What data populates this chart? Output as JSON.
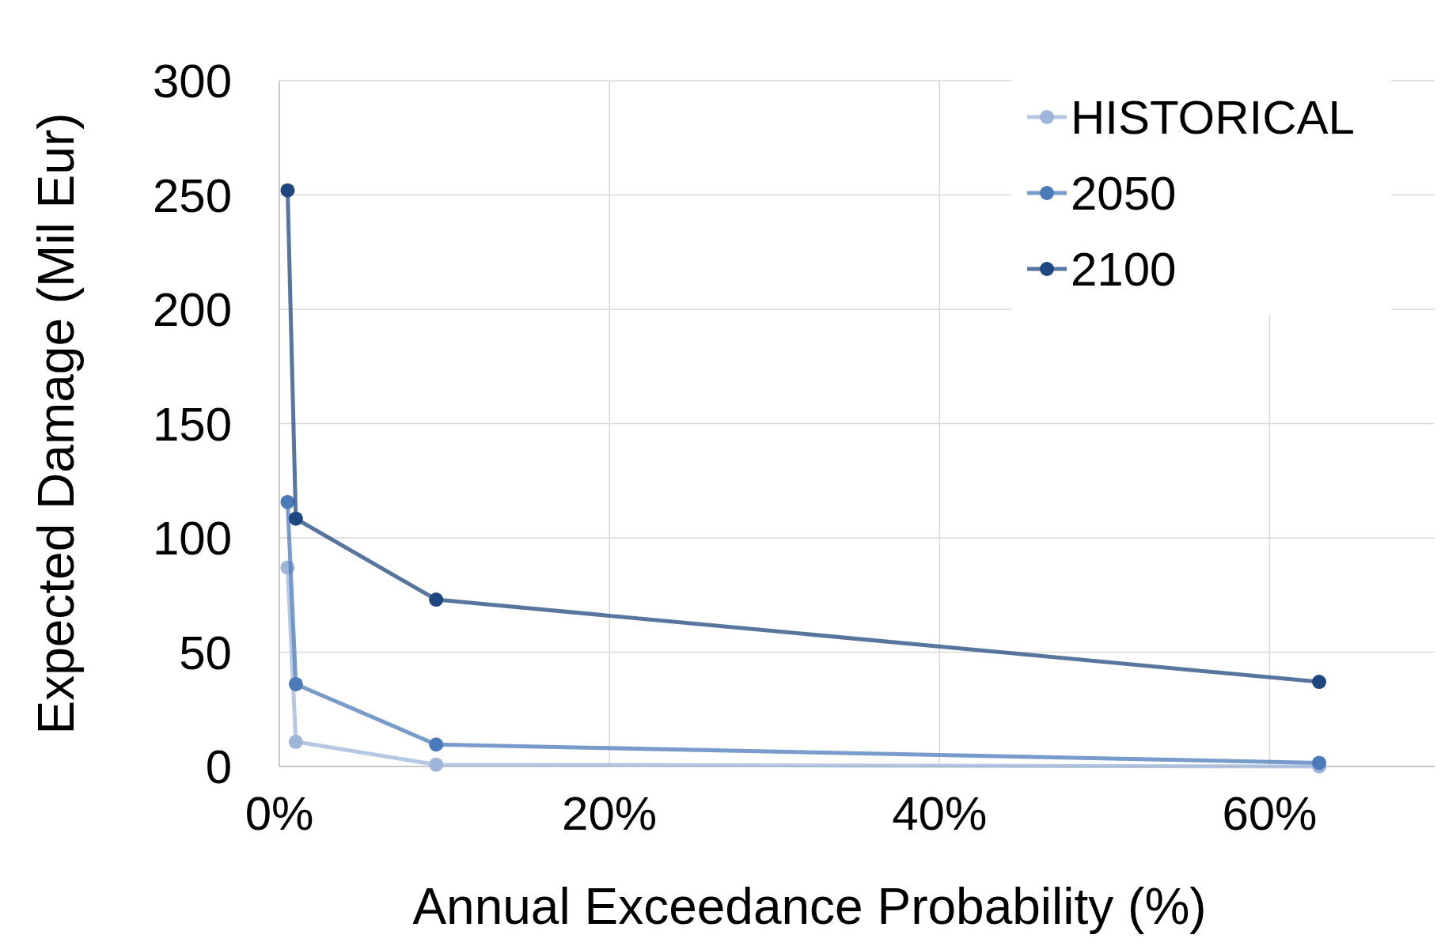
{
  "chart_data": {
    "type": "line",
    "xlabel": "Annual Exceedance Probability (%)",
    "ylabel": "Expected Damage (Mil Eur)",
    "x": [
      0.5,
      1,
      9.5,
      63
    ],
    "series": [
      {
        "name": "HISTORICAL",
        "color": "#9db5d9",
        "values": [
          87,
          10.8,
          0.8,
          0
        ]
      },
      {
        "name": "2050",
        "color": "#4a7ab9",
        "values": [
          115.7,
          36,
          9.6,
          1.6
        ]
      },
      {
        "name": "2100",
        "color": "#1f477f",
        "values": [
          252,
          108.4,
          73,
          37
        ]
      }
    ],
    "xlim": [
      0,
      70
    ],
    "xticks": [
      {
        "value": 0,
        "label": "0%"
      },
      {
        "value": 20,
        "label": "20%"
      },
      {
        "value": 40,
        "label": "40%"
      },
      {
        "value": 60,
        "label": "60%"
      }
    ],
    "ylim": [
      0,
      300
    ],
    "yticks": [
      0,
      50,
      100,
      150,
      200,
      250,
      300
    ],
    "grid": true,
    "legend": "top right",
    "marker": "circle",
    "line_style": "solid"
  }
}
